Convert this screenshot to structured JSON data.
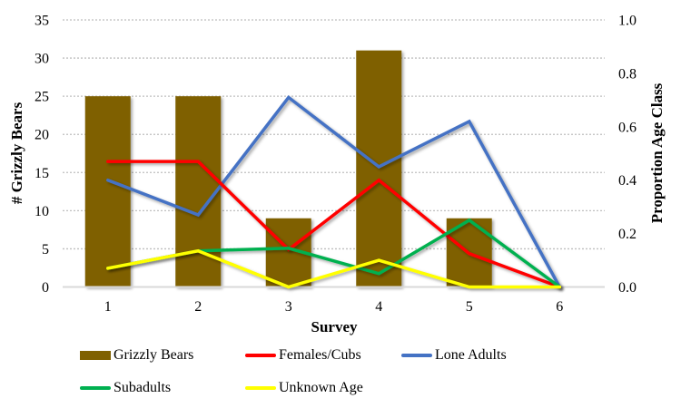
{
  "chart_data": {
    "type": "bar+line",
    "categories": [
      "1",
      "2",
      "3",
      "4",
      "5",
      "6"
    ],
    "xlabel": "Survey",
    "ylabel": "# Grizzly Bears",
    "y2label": "Proportion Age Class",
    "ylim": [
      0,
      35
    ],
    "y2lim": [
      0,
      1.0
    ],
    "yticks": [
      "0",
      "5",
      "10",
      "15",
      "20",
      "25",
      "30",
      "35"
    ],
    "y2ticks": [
      "0.0",
      "0.2",
      "0.4",
      "0.6",
      "0.8",
      "1.0"
    ],
    "grid": true,
    "legend_position": "bottom",
    "bar_series": {
      "name": "Grizzly Bears",
      "axis": "left",
      "color": "#7f6000",
      "values": [
        25,
        25,
        9,
        31,
        9,
        0
      ]
    },
    "line_series": [
      {
        "name": "Females/Cubs",
        "axis": "right",
        "color": "#ff0000",
        "values": [
          0.47,
          0.47,
          0.14,
          0.4,
          0.125,
          0
        ]
      },
      {
        "name": "Lone Adults",
        "axis": "right",
        "color": "#4472c4",
        "values": [
          0.4,
          0.27,
          0.71,
          0.45,
          0.62,
          0
        ]
      },
      {
        "name": "Subadults",
        "axis": "right",
        "color": "#00b050",
        "values": [
          0.07,
          0.135,
          0.145,
          0.05,
          0.25,
          0
        ]
      },
      {
        "name": "Unknown Age",
        "axis": "right",
        "color": "#ffff00",
        "values": [
          0.07,
          0.135,
          0,
          0.1,
          0,
          0
        ]
      }
    ]
  }
}
